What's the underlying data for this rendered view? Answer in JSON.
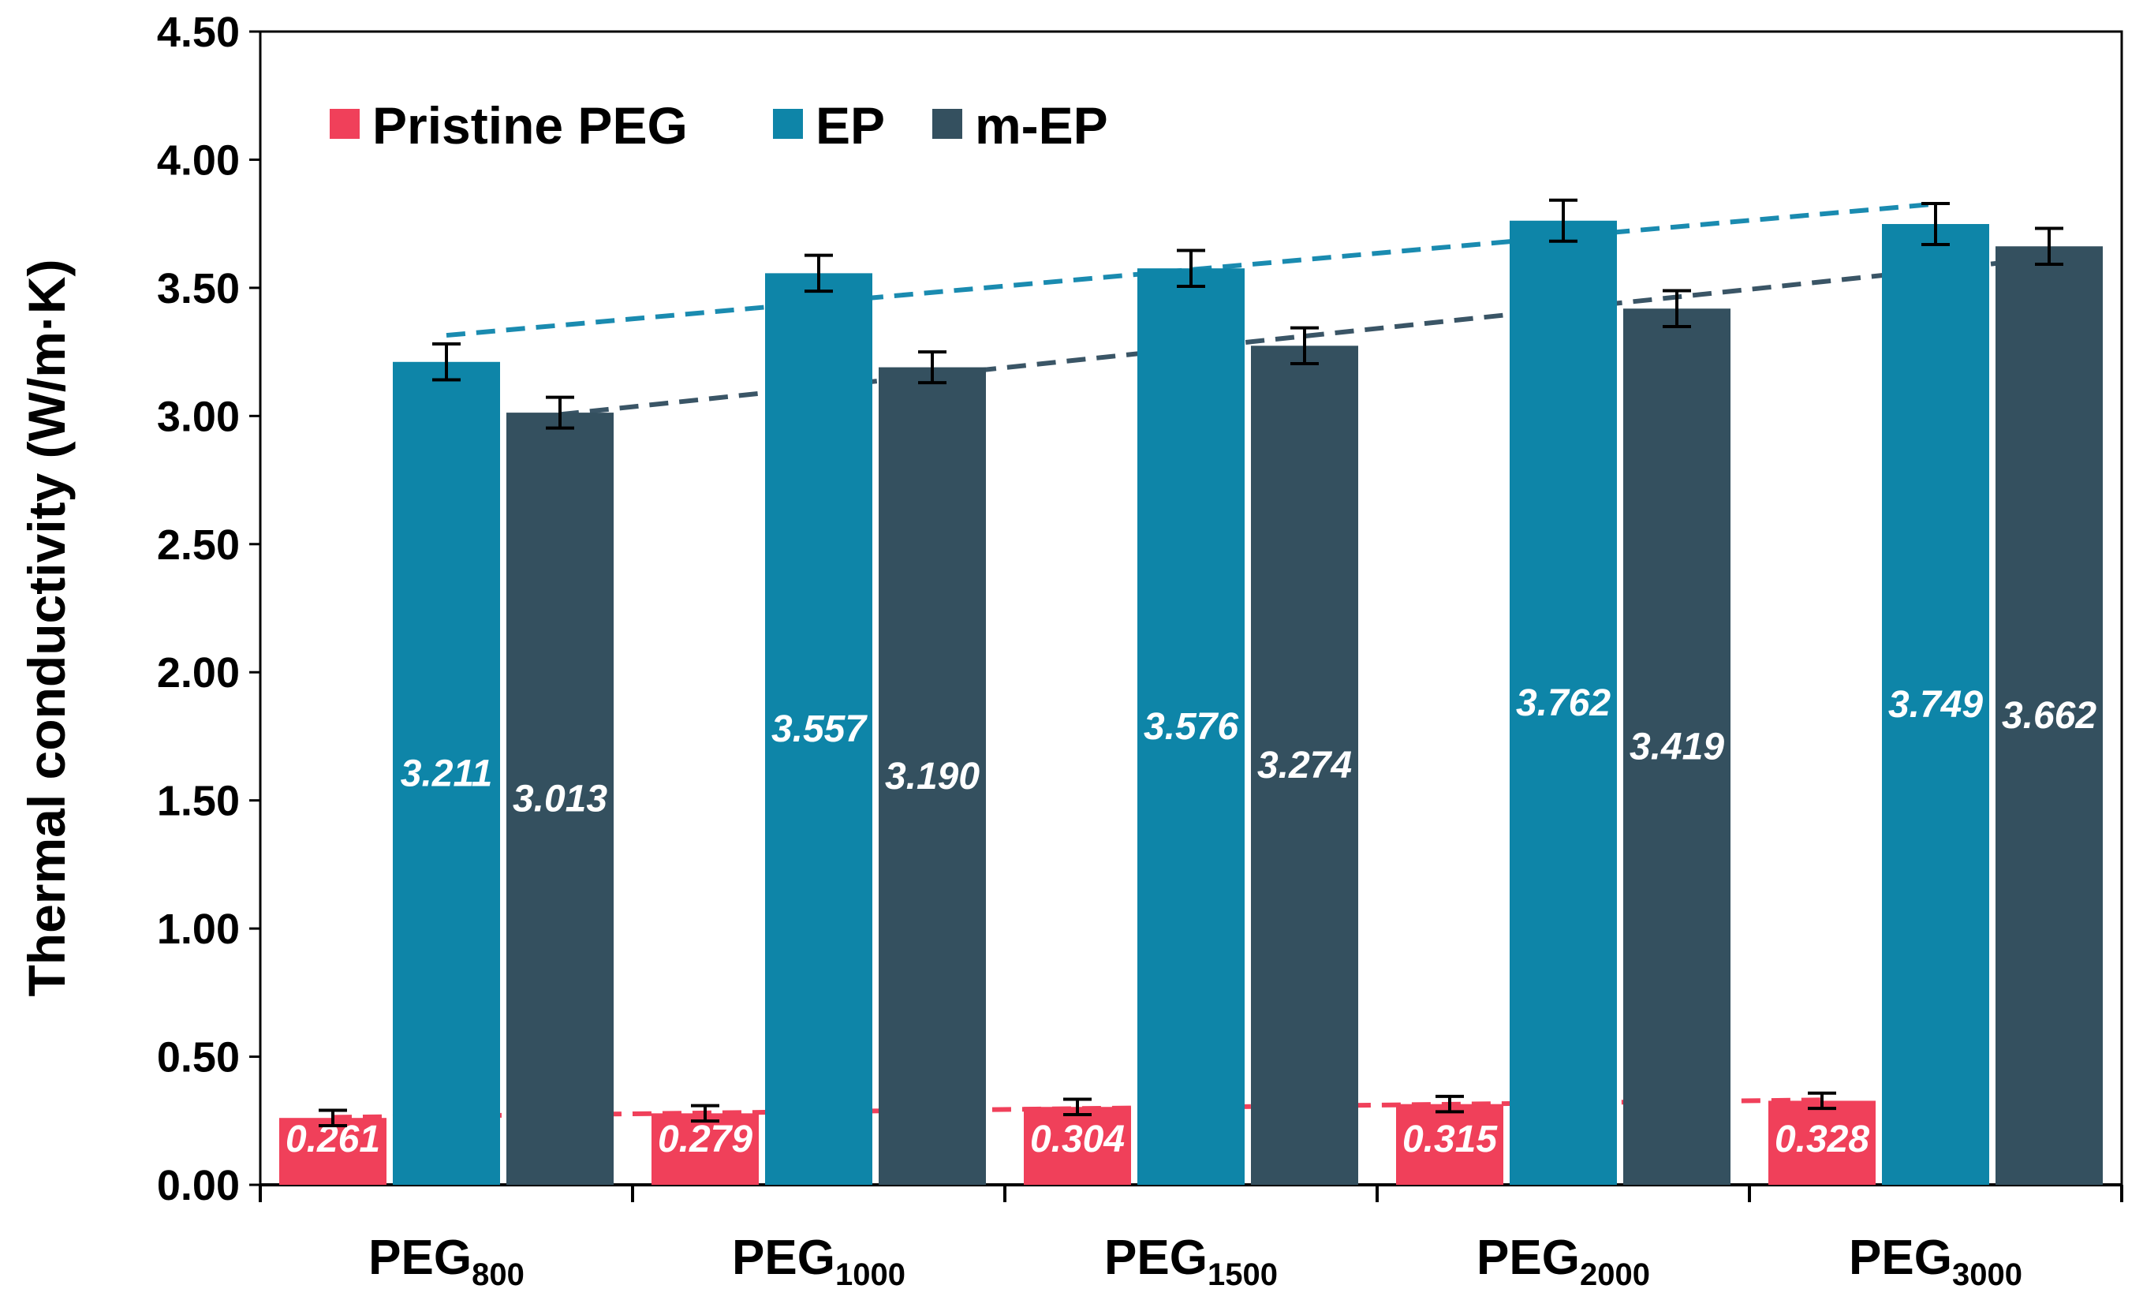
{
  "chart_data": {
    "type": "bar",
    "title": "",
    "xlabel": "",
    "ylabel": "Thermal conductivity (W/m·K)",
    "ylim": [
      0,
      4.5
    ],
    "yticks": [
      "0.00",
      "0.50",
      "1.00",
      "1.50",
      "2.00",
      "2.50",
      "3.00",
      "3.50",
      "4.00",
      "4.50"
    ],
    "categories": [
      {
        "base": "PEG",
        "sub": "800"
      },
      {
        "base": "PEG",
        "sub": "1000"
      },
      {
        "base": "PEG",
        "sub": "1500"
      },
      {
        "base": "PEG",
        "sub": "2000"
      },
      {
        "base": "PEG",
        "sub": "3000"
      }
    ],
    "series": [
      {
        "name": "Pristine PEG",
        "color": "#f0405a",
        "values": [
          0.261,
          0.279,
          0.304,
          0.315,
          0.328
        ],
        "labels": [
          "0.261",
          "0.279",
          "0.304",
          "0.315",
          "0.328"
        ],
        "errors": [
          0.03,
          0.03,
          0.03,
          0.03,
          0.03
        ]
      },
      {
        "name": "EP",
        "color": "#0e85a8",
        "values": [
          3.211,
          3.557,
          3.576,
          3.762,
          3.749
        ],
        "labels": [
          "3.211",
          "3.557",
          "3.576",
          "3.762",
          "3.749"
        ],
        "errors": [
          0.07,
          0.07,
          0.07,
          0.08,
          0.08
        ]
      },
      {
        "name": "m-EP",
        "color": "#34505f",
        "values": [
          3.013,
          3.19,
          3.274,
          3.419,
          3.662
        ],
        "labels": [
          "3.013",
          "3.190",
          "3.274",
          "3.419",
          "3.662"
        ],
        "errors": [
          0.06,
          0.06,
          0.07,
          0.07,
          0.07
        ]
      }
    ],
    "trendlines": [
      {
        "series": "EP",
        "style": "dashed",
        "color": "#1a8bb0"
      },
      {
        "series": "m-EP",
        "style": "dashed",
        "color": "#3a5566"
      },
      {
        "series": "Pristine PEG",
        "style": "dashed",
        "color": "#f0405a"
      }
    ],
    "legend": "top-left"
  }
}
